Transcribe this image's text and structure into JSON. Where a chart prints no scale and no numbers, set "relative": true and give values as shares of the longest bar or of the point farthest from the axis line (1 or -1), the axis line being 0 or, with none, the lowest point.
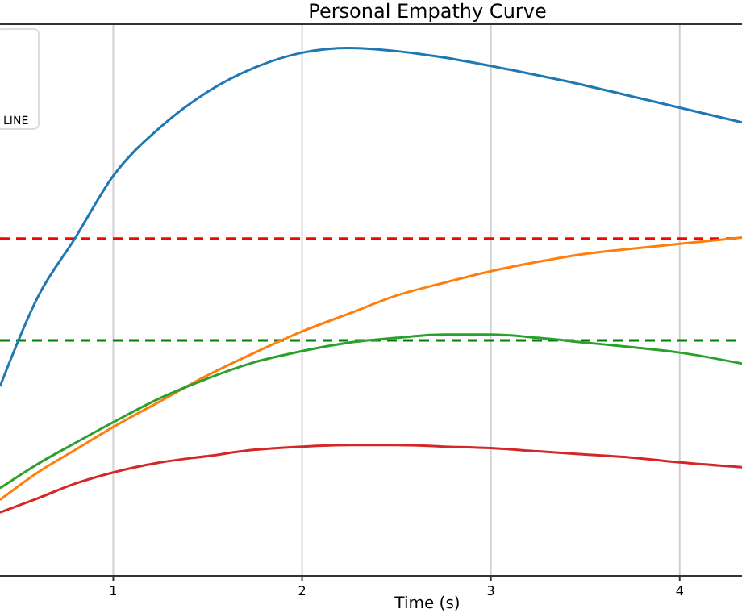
{
  "chart_data": {
    "type": "line",
    "title": "Personal Empathy Curve",
    "xlabel": "Time (s)",
    "relative": true,
    "x": [
      0.4,
      0.6,
      0.8,
      1.0,
      1.25,
      1.5,
      1.75,
      2.0,
      2.25,
      2.5,
      2.75,
      3.0,
      3.25,
      3.5,
      3.75,
      4.0,
      4.33
    ],
    "xlim": [
      0.4,
      4.33
    ],
    "xticks": [
      1,
      2,
      3,
      4
    ],
    "grid": "x",
    "line_style": "solid",
    "marker": "none",
    "series": [
      {
        "color": "#1f77b4",
        "values": [
          0.359,
          0.528,
          0.641,
          0.758,
          0.85,
          0.917,
          0.963,
          0.991,
          1.0,
          0.994,
          0.982,
          0.966,
          0.948,
          0.929,
          0.908,
          0.887,
          0.859
        ]
      },
      {
        "color": "#ff7f0e",
        "values": [
          0.144,
          0.196,
          0.239,
          0.282,
          0.331,
          0.38,
          0.423,
          0.463,
          0.497,
          0.531,
          0.555,
          0.577,
          0.595,
          0.61,
          0.62,
          0.629,
          0.641
        ]
      },
      {
        "color": "#2ca02c",
        "values": [
          0.166,
          0.212,
          0.252,
          0.291,
          0.337,
          0.374,
          0.405,
          0.426,
          0.442,
          0.451,
          0.457,
          0.457,
          0.451,
          0.442,
          0.433,
          0.423,
          0.402
        ]
      },
      {
        "color": "#d62728",
        "values": [
          0.12,
          0.147,
          0.175,
          0.196,
          0.215,
          0.227,
          0.239,
          0.245,
          0.248,
          0.248,
          0.245,
          0.242,
          0.236,
          0.23,
          0.224,
          0.215,
          0.206
        ]
      }
    ],
    "ref_lines": [
      {
        "axis": "y",
        "value": 0.639,
        "color": "#ff0000",
        "line_style": "dashed"
      },
      {
        "axis": "y",
        "value": 0.446,
        "color": "#008000",
        "line_style": "dashed"
      }
    ],
    "annotations": [
      "LINE"
    ]
  }
}
